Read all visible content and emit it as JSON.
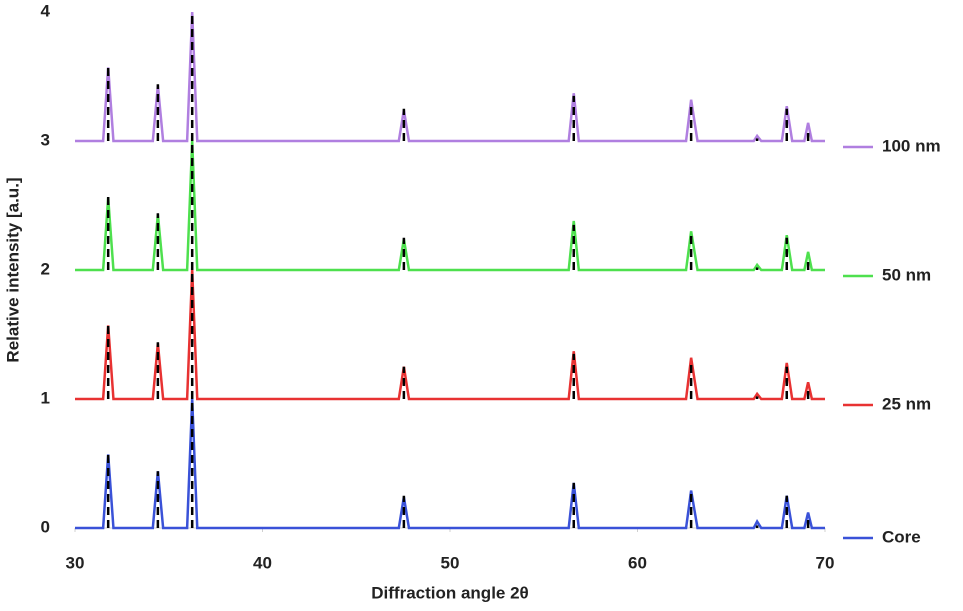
{
  "chart_data": {
    "type": "line",
    "x_label": "Diffraction angle 2θ",
    "y_label": "Relative intensity [a.u.]",
    "xlim": [
      30,
      70
    ],
    "xticks": [
      30,
      40,
      50,
      60,
      70
    ],
    "ylim": [
      0,
      4
    ],
    "yticks": [
      0,
      1,
      2,
      3,
      4
    ],
    "grid": false,
    "legend": "right",
    "x": [
      30,
      31.5,
      31.77,
      32.05,
      34.15,
      34.42,
      34.7,
      35.98,
      36.25,
      36.52,
      47.27,
      47.54,
      47.81,
      56.33,
      56.6,
      56.87,
      62.59,
      62.86,
      63.2,
      66.2,
      66.38,
      66.6,
      67.7,
      67.96,
      68.25,
      68.9,
      69.1,
      69.3,
      70
    ],
    "series": [
      {
        "name": "100 nm",
        "color": "#b07fe0",
        "baseline": 3,
        "values": [
          3,
          3,
          3.57,
          3,
          3,
          3.43,
          3,
          3,
          4.0,
          3,
          3,
          3.24,
          3,
          3,
          3.37,
          3,
          3,
          3.32,
          3,
          3,
          3.04,
          3,
          3,
          3.27,
          3,
          3,
          3.14,
          3,
          3
        ]
      },
      {
        "name": "50 nm",
        "color": "#4ee04e",
        "baseline": 2,
        "values": [
          2,
          2,
          2.56,
          2,
          2,
          2.43,
          2,
          2,
          3.0,
          2,
          2,
          2.24,
          2,
          2,
          2.38,
          2,
          2,
          2.3,
          2,
          2,
          2.04,
          2,
          2,
          2.27,
          2,
          2,
          2.14,
          2,
          2
        ]
      },
      {
        "name": "25 nm",
        "color": "#e83232",
        "baseline": 1,
        "values": [
          1,
          1,
          1.57,
          1,
          1,
          1.43,
          1,
          1,
          2.0,
          1,
          1,
          1.25,
          1,
          1,
          1.37,
          1,
          1,
          1.32,
          1,
          1,
          1.04,
          1,
          1,
          1.28,
          1,
          1,
          1.13,
          1,
          1
        ]
      },
      {
        "name": "Core",
        "color": "#3a52d8",
        "baseline": 0,
        "values": [
          0,
          0,
          0.57,
          0,
          0,
          0.44,
          0,
          0,
          1.0,
          0,
          0,
          0.24,
          0,
          0,
          0.35,
          0,
          0,
          0.29,
          0,
          0,
          0.05,
          0,
          0,
          0.25,
          0,
          0,
          0.12,
          0,
          0
        ]
      }
    ],
    "reference": {
      "color": "#000000",
      "x": [
        31.77,
        34.42,
        36.25,
        47.54,
        56.6,
        62.86,
        66.38,
        67.96,
        69.1
      ],
      "values": [
        0.57,
        0.44,
        1.0,
        0.25,
        0.35,
        0.3,
        0.02,
        0.25,
        0.1
      ]
    }
  }
}
